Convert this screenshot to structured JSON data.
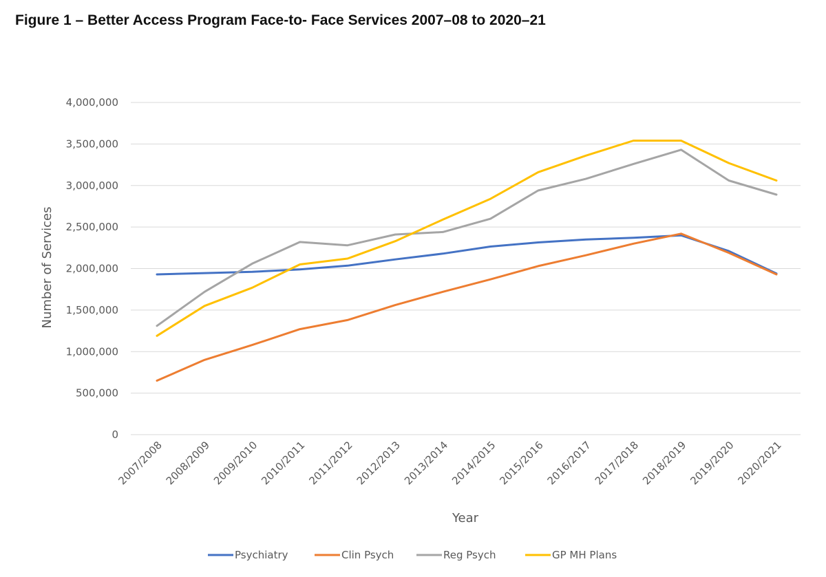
{
  "chart_data": {
    "type": "line",
    "title": "Figure 1 – Better Access Program Face-to- Face Services 2007–08 to 2020–21",
    "xlabel": "Year",
    "ylabel": "Number of Services",
    "ylim": [
      0,
      4000000
    ],
    "yticks": [
      0,
      500000,
      1000000,
      1500000,
      2000000,
      2500000,
      3000000,
      3500000,
      4000000
    ],
    "ytick_labels": [
      "0",
      "500,000",
      "1,000,000",
      "1,500,000",
      "2,000,000",
      "2,500,000",
      "3,000,000",
      "3,500,000",
      "4,000,000"
    ],
    "grid": true,
    "legend_position": "bottom",
    "categories": [
      "2007/2008",
      "2008/2009",
      "2009/2010",
      "2010/2011",
      "2011/2012",
      "2012/2013",
      "2013/2014",
      "2014/2015",
      "2015/2016",
      "2016/2017",
      "2017/2018",
      "2018/2019",
      "2019/2020",
      "2020/2021"
    ],
    "series": [
      {
        "name": "Psychiatry",
        "color": "#4472C4",
        "values": [
          1930000,
          1945000,
          1960000,
          1990000,
          2035000,
          2110000,
          2180000,
          2265000,
          2315000,
          2350000,
          2370000,
          2400000,
          2210000,
          1940000
        ]
      },
      {
        "name": "Clin Psych",
        "color": "#ED7D31",
        "values": [
          650000,
          900000,
          1080000,
          1270000,
          1380000,
          1560000,
          1720000,
          1870000,
          2030000,
          2160000,
          2300000,
          2420000,
          2190000,
          1930000
        ]
      },
      {
        "name": "Reg Psych",
        "color": "#A5A5A5",
        "values": [
          1310000,
          1720000,
          2060000,
          2320000,
          2280000,
          2410000,
          2440000,
          2600000,
          2940000,
          3080000,
          3260000,
          3430000,
          3060000,
          2890000
        ]
      },
      {
        "name": "GP MH Plans",
        "color": "#FFC000",
        "values": [
          1190000,
          1550000,
          1770000,
          2050000,
          2120000,
          2330000,
          2590000,
          2840000,
          3160000,
          3360000,
          3540000,
          3540000,
          3270000,
          3060000
        ]
      }
    ]
  }
}
